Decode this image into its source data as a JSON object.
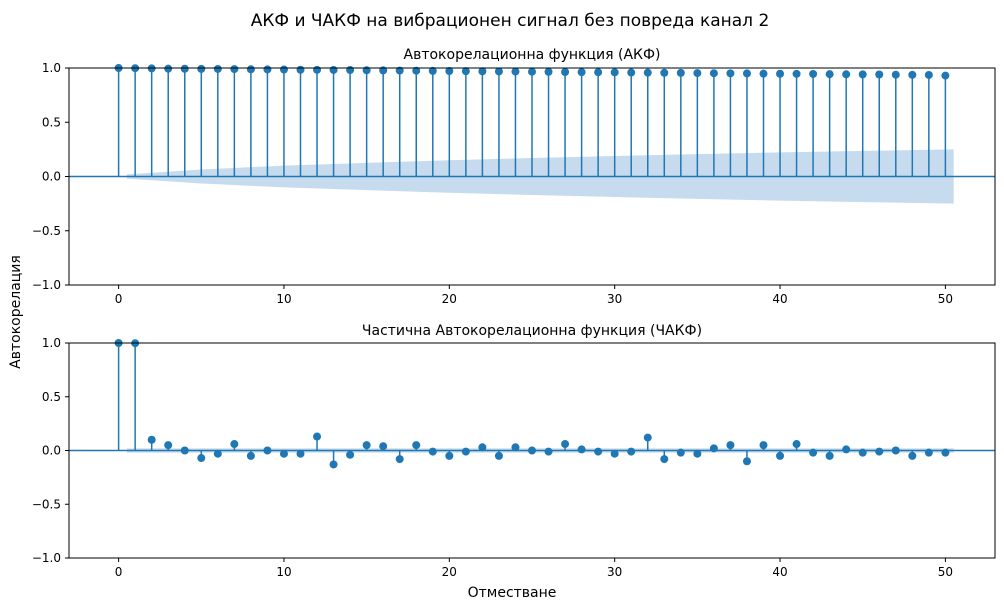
{
  "figure": {
    "suptitle": "АКФ и ЧАКФ на вибрационен сигнал без повреда канал 2",
    "ylabel": "Автокорелация",
    "xlabel": "Отместване"
  },
  "colors": {
    "stem": "#1f77b4",
    "confidence_band": "#c3d9ec",
    "axis": "#000000"
  },
  "chart_data": [
    {
      "type": "stem",
      "title": "Автокорелационна функция (АКФ)",
      "xlim": [
        -3,
        53
      ],
      "ylim": [
        -1,
        1
      ],
      "xticks": [
        0,
        10,
        20,
        30,
        40,
        50
      ],
      "yticks": [
        -1.0,
        -0.5,
        0.0,
        0.5,
        1.0
      ],
      "ytick_labels": [
        "−1.0",
        "−0.5",
        "0.0",
        "0.5",
        "1.0"
      ],
      "xtick_labels": [
        "0",
        "10",
        "20",
        "30",
        "40",
        "50"
      ],
      "lags": [
        0,
        1,
        2,
        3,
        4,
        5,
        6,
        7,
        8,
        9,
        10,
        11,
        12,
        13,
        14,
        15,
        16,
        17,
        18,
        19,
        20,
        21,
        22,
        23,
        24,
        25,
        26,
        27,
        28,
        29,
        30,
        31,
        32,
        33,
        34,
        35,
        36,
        37,
        38,
        39,
        40,
        41,
        42,
        43,
        44,
        45,
        46,
        47,
        48,
        49,
        50
      ],
      "values": [
        1.0,
        0.998,
        0.996,
        0.994,
        0.993,
        0.992,
        0.991,
        0.99,
        0.988,
        0.987,
        0.986,
        0.984,
        0.983,
        0.982,
        0.981,
        0.979,
        0.978,
        0.976,
        0.975,
        0.973,
        0.972,
        0.971,
        0.97,
        0.968,
        0.967,
        0.966,
        0.965,
        0.963,
        0.962,
        0.961,
        0.96,
        0.958,
        0.957,
        0.956,
        0.955,
        0.953,
        0.952,
        0.951,
        0.95,
        0.948,
        0.947,
        0.946,
        0.945,
        0.943,
        0.942,
        0.941,
        0.94,
        0.938,
        0.937,
        0.936,
        0.93
      ],
      "confidence_band": {
        "x": [
          0.5,
          5,
          10,
          15,
          20,
          25,
          30,
          35,
          40,
          45,
          50.5
        ],
        "upper": [
          0.02,
          0.065,
          0.1,
          0.126,
          0.15,
          0.17,
          0.189,
          0.206,
          0.222,
          0.236,
          0.25
        ]
      }
    },
    {
      "type": "stem",
      "title": "Частична Автокорелационна функция (ЧАКФ)",
      "xlim": [
        -3,
        53
      ],
      "ylim": [
        -1,
        1
      ],
      "xticks": [
        0,
        10,
        20,
        30,
        40,
        50
      ],
      "yticks": [
        -1.0,
        -0.5,
        0.0,
        0.5,
        1.0
      ],
      "ytick_labels": [
        "−1.0",
        "−0.5",
        "0.0",
        "0.5",
        "1.0"
      ],
      "xtick_labels": [
        "0",
        "10",
        "20",
        "30",
        "40",
        "50"
      ],
      "lags": [
        0,
        1,
        2,
        3,
        4,
        5,
        6,
        7,
        8,
        9,
        10,
        11,
        12,
        13,
        14,
        15,
        16,
        17,
        18,
        19,
        20,
        21,
        22,
        23,
        24,
        25,
        26,
        27,
        28,
        29,
        30,
        31,
        32,
        33,
        34,
        35,
        36,
        37,
        38,
        39,
        40,
        41,
        42,
        43,
        44,
        45,
        46,
        47,
        48,
        49,
        50
      ],
      "values": [
        1.0,
        0.998,
        0.1,
        0.05,
        0.0,
        -0.07,
        -0.03,
        0.06,
        -0.05,
        0.0,
        -0.03,
        -0.03,
        0.13,
        -0.13,
        -0.04,
        0.05,
        0.04,
        -0.08,
        0.05,
        -0.01,
        -0.05,
        -0.01,
        0.03,
        -0.05,
        0.03,
        0.0,
        -0.01,
        0.06,
        0.01,
        -0.01,
        -0.03,
        -0.01,
        0.12,
        -0.08,
        -0.02,
        -0.03,
        0.02,
        0.05,
        -0.1,
        0.05,
        -0.05,
        0.06,
        -0.02,
        -0.05,
        0.01,
        -0.02,
        -0.01,
        0.0,
        -0.05,
        -0.02,
        -0.02
      ],
      "confidence_band": {
        "x": [
          0.5,
          50.5
        ],
        "upper": [
          0.02,
          0.02
        ]
      }
    }
  ]
}
